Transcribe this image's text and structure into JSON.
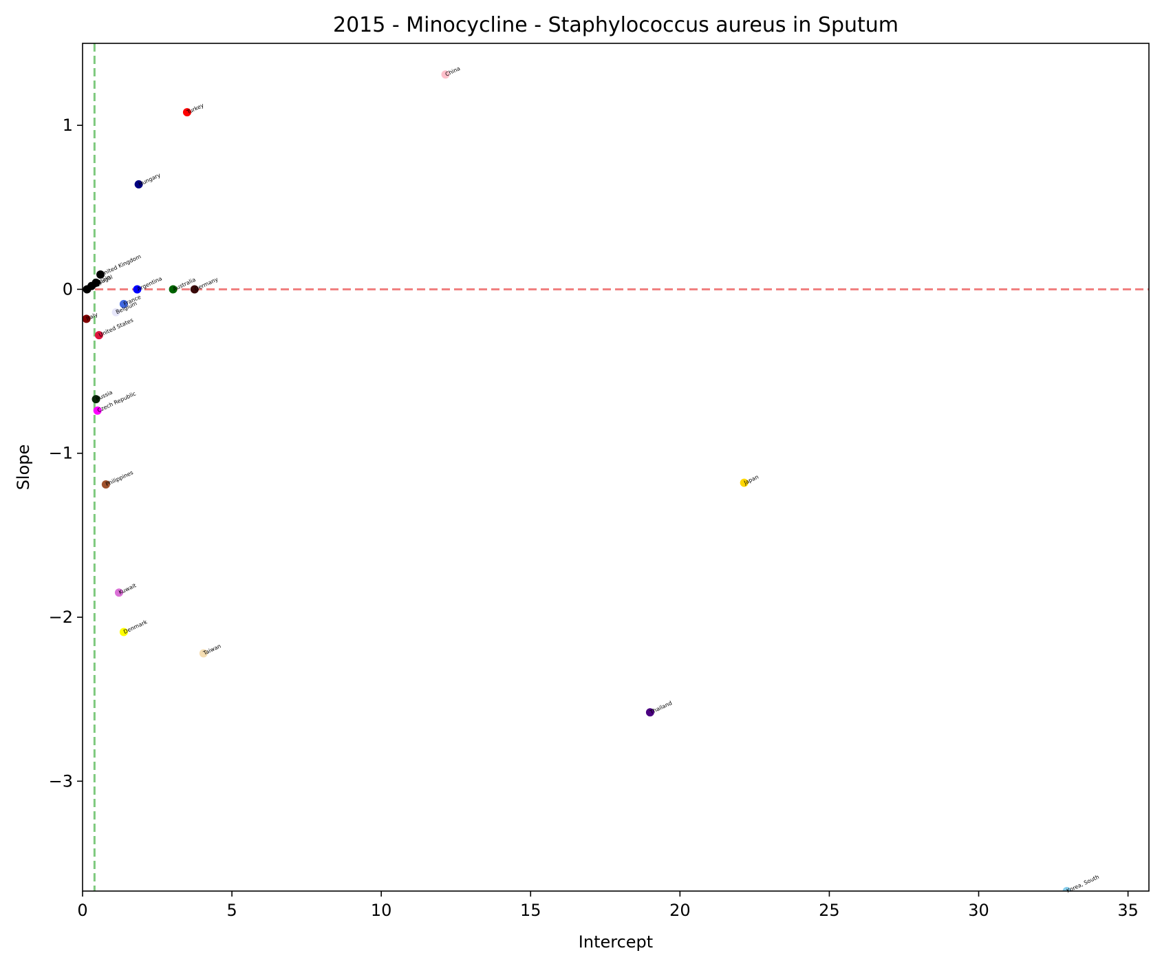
{
  "chart_data": {
    "type": "scatter",
    "title": "2015 - Minocycline - Staphylococcus aureus in Sputum",
    "xlabel": "Intercept",
    "ylabel": "Slope",
    "xlim": [
      0,
      35.7
    ],
    "ylim": [
      -3.67,
      1.5
    ],
    "x_ticks": [
      0,
      5,
      10,
      15,
      20,
      25,
      30,
      35
    ],
    "x_tick_labels": [
      "0",
      "5",
      "10",
      "15",
      "20",
      "25",
      "30",
      "35"
    ],
    "y_ticks": [
      1,
      0,
      -1,
      -2,
      -3
    ],
    "y_tick_labels": [
      "1",
      "0",
      "−1",
      "−2",
      "−3"
    ],
    "grid": false,
    "reference_lines": [
      {
        "orientation": "horizontal",
        "value": 0,
        "color": "#f08080",
        "style": "dashed"
      },
      {
        "orientation": "vertical",
        "value": 0.4,
        "color": "#7dc97d",
        "style": "dashed"
      }
    ],
    "points": [
      {
        "label": "China",
        "x": 12.15,
        "y": 1.31,
        "color": "#ffc0cb"
      },
      {
        "label": "Turkey",
        "x": 3.5,
        "y": 1.08,
        "color": "#ff0000"
      },
      {
        "label": "Hungary",
        "x": 1.88,
        "y": 0.64,
        "color": "#000080"
      },
      {
        "label": "United Kingdom",
        "x": 0.6,
        "y": 0.09,
        "color": "#000000"
      },
      {
        "label": "Spain",
        "x": 0.45,
        "y": 0.04,
        "color": "#000000"
      },
      {
        "label": "Portugal",
        "x": 0.3,
        "y": 0.02,
        "color": "#000000"
      },
      {
        "label": "Israel",
        "x": 0.15,
        "y": 0.0,
        "color": "#000000"
      },
      {
        "label": "Argentina",
        "x": 1.83,
        "y": 0.0,
        "color": "#0000ff"
      },
      {
        "label": "Australia",
        "x": 3.03,
        "y": 0.0,
        "color": "#006400"
      },
      {
        "label": "Germany",
        "x": 3.75,
        "y": 0.0,
        "color": "#3a0a0a"
      },
      {
        "label": "France",
        "x": 1.38,
        "y": -0.09,
        "color": "#4169e1"
      },
      {
        "label": "Belgium",
        "x": 1.12,
        "y": -0.14,
        "color": "#e6e6fa"
      },
      {
        "label": "Italy",
        "x": 0.13,
        "y": -0.18,
        "color": "#800000"
      },
      {
        "label": "United States",
        "x": 0.55,
        "y": -0.28,
        "color": "#dc143c"
      },
      {
        "label": "Russia",
        "x": 0.45,
        "y": -0.67,
        "color": "#0a2a0a"
      },
      {
        "label": "Czech Republic",
        "x": 0.5,
        "y": -0.74,
        "color": "#ff00ff"
      },
      {
        "label": "Philippines",
        "x": 0.78,
        "y": -1.19,
        "color": "#a0522d"
      },
      {
        "label": "Japan",
        "x": 22.15,
        "y": -1.18,
        "color": "#ffd700"
      },
      {
        "label": "Kuwait",
        "x": 1.22,
        "y": -1.85,
        "color": "#da70d6"
      },
      {
        "label": "Denmark",
        "x": 1.38,
        "y": -2.09,
        "color": "#ffff00"
      },
      {
        "label": "Taiwan",
        "x": 4.05,
        "y": -2.22,
        "color": "#f5deb3"
      },
      {
        "label": "Thailand",
        "x": 19.0,
        "y": -2.58,
        "color": "#4b0082"
      },
      {
        "label": "Korea, South",
        "x": 32.95,
        "y": -3.67,
        "color": "#87ceeb"
      }
    ]
  }
}
